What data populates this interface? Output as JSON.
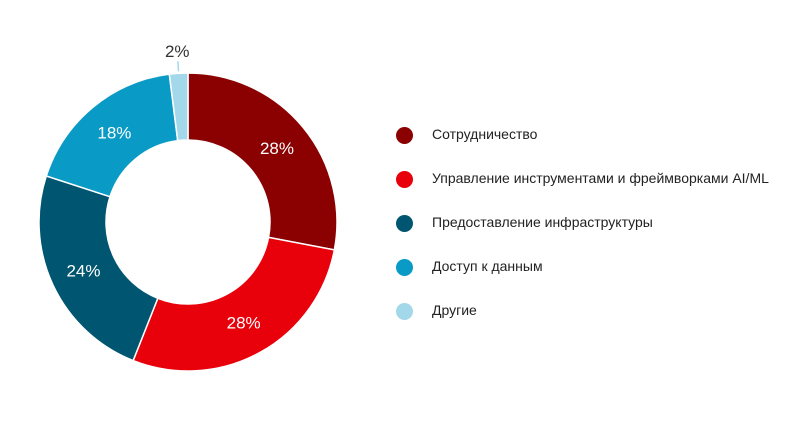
{
  "chart_data": {
    "type": "pie",
    "donut": true,
    "categories": [
      "Сотрудничество",
      "Управление инструментами и фреймворками AI/ML",
      "Предоставление инфраструктуры",
      "Доступ к данным",
      "Другие"
    ],
    "values": [
      28,
      28,
      24,
      18,
      2
    ],
    "labels": [
      "28%",
      "28%",
      "24%",
      "18%",
      "2%"
    ],
    "colors": [
      "#8b0000",
      "#e8000b",
      "#005570",
      "#0a9ac6",
      "#a3d8ea"
    ],
    "label_colors": [
      "#ffffff",
      "#ffffff",
      "#ffffff",
      "#ffffff",
      "#333333"
    ],
    "legend_position": "right",
    "title": "",
    "start_angle_deg": 0,
    "direction": "clockwise"
  }
}
